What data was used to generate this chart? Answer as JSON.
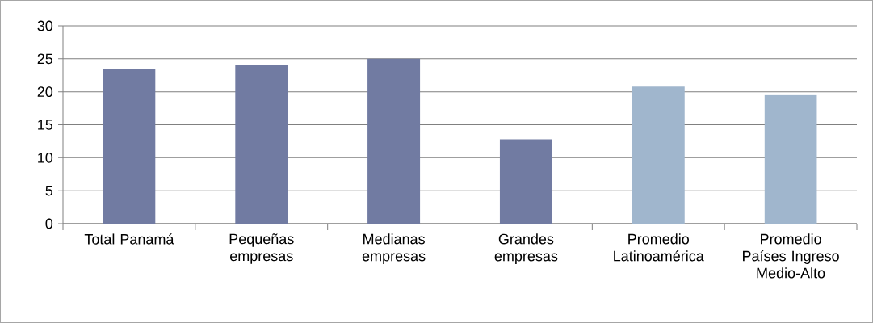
{
  "chart_data": {
    "type": "bar",
    "categories": [
      "Total Panamá",
      "Pequeñas empresas",
      "Medianas empresas",
      "Grandes empresas",
      "Promedio Latinoamérica",
      "Promedio Países Ingreso Medio-Alto"
    ],
    "values": [
      23.5,
      24.0,
      25.0,
      12.8,
      20.8,
      19.5
    ],
    "colors": [
      "#717ba2",
      "#717ba2",
      "#717ba2",
      "#717ba2",
      "#a0b6cd",
      "#a0b6cd"
    ],
    "ylim": [
      0,
      30
    ],
    "yticks": [
      0,
      5,
      10,
      15,
      20,
      25,
      30
    ],
    "grid": "y"
  }
}
